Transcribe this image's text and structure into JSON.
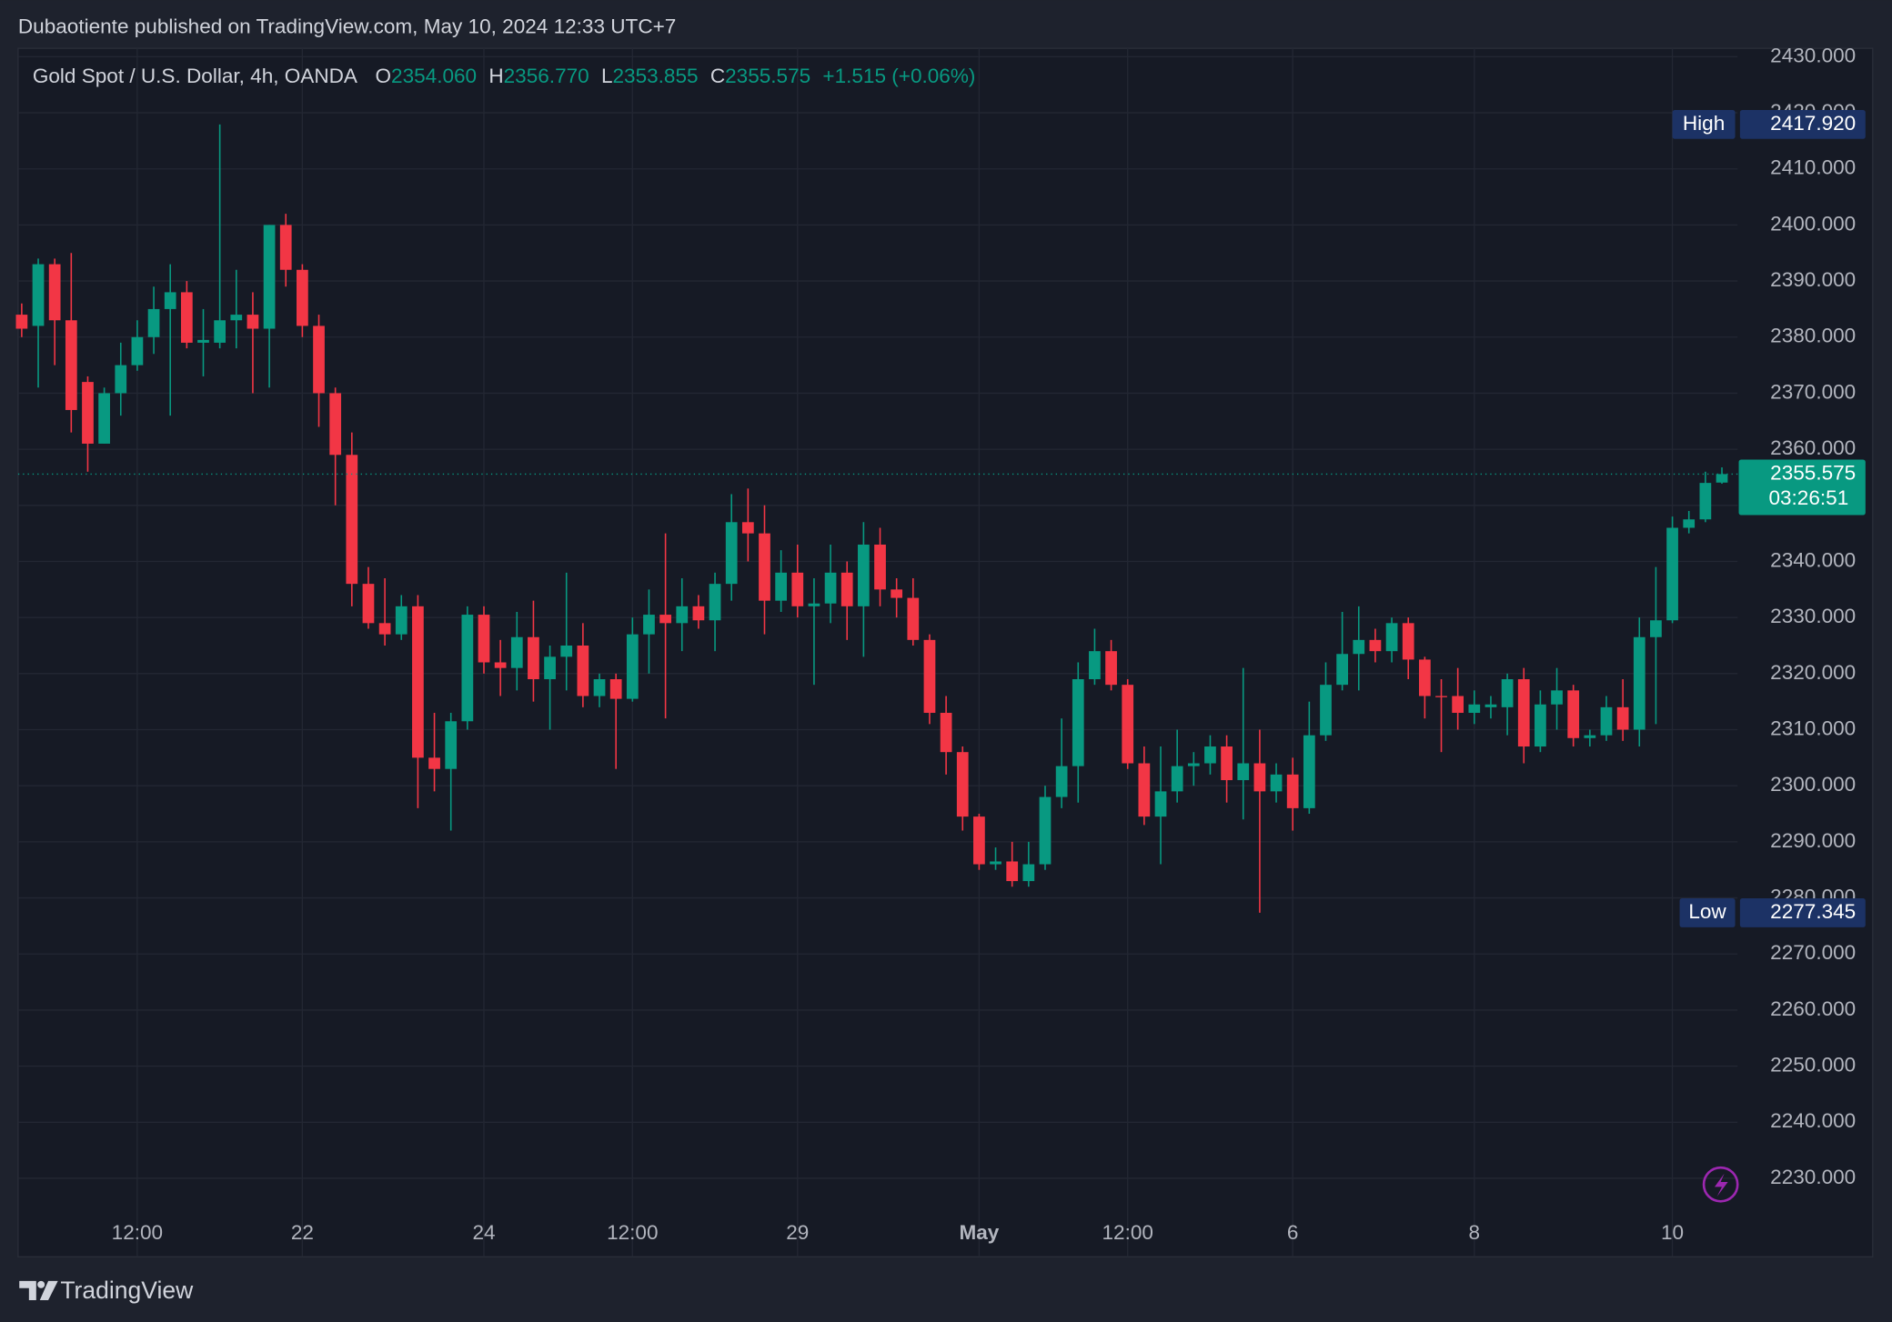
{
  "header": "Dubaotiente published on TradingView.com, May 10, 2024 12:33 UTC+7",
  "footer": "TradingView",
  "chart_data": {
    "type": "candlestick",
    "legend": {
      "symbol": "Gold Spot / U.S. Dollar, 4h, OANDA",
      "items": [
        {
          "key": "O",
          "label": "2354.060"
        },
        {
          "key": "H",
          "label": "2356.770"
        },
        {
          "key": "L",
          "label": "2353.855"
        },
        {
          "key": "C",
          "label": "2355.575"
        }
      ],
      "change": "+1.515 (+0.06%)"
    },
    "up_color": "#089981",
    "down_color": "#f23645",
    "categories": [
      null,
      null,
      null,
      null,
      null,
      null,
      null,
      "12:00",
      null,
      null,
      null,
      null,
      null,
      null,
      null,
      null,
      null,
      "22",
      null,
      null,
      null,
      null,
      null,
      null,
      null,
      null,
      null,
      null,
      "24",
      null,
      null,
      null,
      null,
      null,
      null,
      null,
      null,
      "12:00",
      null,
      null,
      null,
      null,
      null,
      null,
      null,
      null,
      null,
      "29",
      null,
      null,
      null,
      null,
      null,
      null,
      null,
      null,
      null,
      null,
      "May",
      null,
      null,
      null,
      null,
      null,
      null,
      null,
      null,
      "12:00",
      null,
      null,
      null,
      null,
      null,
      null,
      null,
      null,
      null,
      "6",
      null,
      null,
      null,
      null,
      null,
      null,
      null,
      null,
      null,
      null,
      "8",
      null,
      null,
      null,
      null,
      null,
      null,
      null,
      null,
      null,
      null,
      null,
      "10",
      null,
      null,
      null
    ],
    "open": [
      2384,
      2382,
      2393,
      2383,
      2372,
      2361,
      2370,
      2375,
      2380,
      2385,
      2388,
      2379,
      2379,
      2383,
      2384,
      2381.5,
      2400,
      2392,
      2382,
      2370,
      2359,
      2336,
      2329,
      2327,
      2332,
      2305,
      2303,
      2311.5,
      2330.5,
      2322,
      2321,
      2326.5,
      2319,
      2323,
      2325,
      2316,
      2319,
      2315.5,
      2327,
      2330.5,
      2329,
      2332,
      2329.5,
      2336,
      2347,
      2345,
      2333,
      2338,
      2332,
      2332.5,
      2338,
      2332,
      2343,
      2335,
      2333.5,
      2326,
      2313,
      2306,
      2294.5,
      2286,
      2286.5,
      2283,
      2286,
      2298,
      2303.5,
      2319,
      2324,
      2318,
      2304,
      2294.5,
      2299,
      2303.5,
      2304,
      2307,
      2301,
      2304,
      2299,
      2302,
      2296,
      2309,
      2318,
      2323.5,
      2326,
      2324,
      2329,
      2322.5,
      2316,
      2316,
      2313,
      2314,
      2314,
      2319,
      2307,
      2314.5,
      2317,
      2308.5,
      2309,
      2314,
      2310,
      2326.5,
      2329.5,
      2346,
      2347.5,
      2354.06
    ],
    "high": [
      2386,
      2394,
      2394,
      2395,
      2373,
      2371,
      2379,
      2383,
      2389,
      2393,
      2390,
      2385,
      2417.92,
      2392,
      2388,
      2400,
      2402,
      2393,
      2384,
      2371,
      2363,
      2339,
      2337,
      2334,
      2334,
      2313,
      2313,
      2332,
      2332,
      2326,
      2331,
      2333,
      2325,
      2338,
      2329,
      2320,
      2320,
      2330,
      2335,
      2345,
      2337,
      2334,
      2338,
      2352,
      2353,
      2350,
      2342,
      2343,
      2337,
      2343,
      2340,
      2347,
      2346,
      2337,
      2337,
      2327,
      2316,
      2307,
      2295,
      2289,
      2290,
      2290,
      2300,
      2312,
      2322,
      2328,
      2326,
      2319,
      2307,
      2307,
      2310,
      2306,
      2309,
      2309,
      2321,
      2310,
      2304,
      2305,
      2315,
      2322,
      2331,
      2332,
      2328,
      2330,
      2330,
      2323,
      2319,
      2321,
      2317,
      2316,
      2320,
      2321,
      2317,
      2321,
      2318,
      2310,
      2316,
      2319,
      2330,
      2339,
      2348,
      2349,
      2356,
      2356.77
    ],
    "low": [
      2380,
      2371,
      2375,
      2363,
      2356,
      2361,
      2366,
      2374,
      2377,
      2366,
      2378,
      2373,
      2378,
      2378,
      2370,
      2371,
      2389,
      2380,
      2364,
      2350,
      2332,
      2328,
      2325,
      2326,
      2296,
      2299,
      2292,
      2310,
      2320,
      2316,
      2317,
      2315,
      2310,
      2317,
      2314,
      2314,
      2303,
      2315,
      2320,
      2312,
      2324,
      2328,
      2324,
      2333,
      2340,
      2327,
      2331,
      2330,
      2318,
      2329,
      2326,
      2323,
      2332,
      2330,
      2325,
      2311,
      2302,
      2292,
      2285,
      2285,
      2282,
      2282,
      2285,
      2296,
      2297,
      2318,
      2317,
      2303,
      2293,
      2286,
      2297,
      2300,
      2302,
      2297,
      2294,
      2277.345,
      2297,
      2292,
      2295,
      2308,
      2317,
      2317,
      2322,
      2322,
      2319,
      2312,
      2306,
      2310,
      2311,
      2312,
      2309,
      2304,
      2306,
      2310,
      2307,
      2307,
      2308,
      2308,
      2307,
      2311,
      2329,
      2345,
      2347,
      2353.855
    ],
    "close": [
      2381.5,
      2393,
      2383,
      2367,
      2361,
      2370,
      2375,
      2380,
      2385,
      2388,
      2379,
      2379.5,
      2383,
      2384,
      2381.5,
      2400,
      2392,
      2382,
      2370,
      2359,
      2336,
      2329,
      2327,
      2332,
      2305,
      2303,
      2311.5,
      2330.5,
      2322,
      2321,
      2326.5,
      2319,
      2323,
      2325,
      2316,
      2319,
      2315.5,
      2327,
      2330.5,
      2329,
      2332,
      2329.5,
      2336,
      2347,
      2345,
      2333,
      2338,
      2332,
      2332.5,
      2338,
      2332,
      2343,
      2335,
      2333.5,
      2326,
      2313,
      2306,
      2294.5,
      2286,
      2286.5,
      2283,
      2286,
      2298,
      2303.5,
      2319,
      2324,
      2318,
      2304,
      2294.5,
      2299,
      2303.5,
      2304,
      2307,
      2301,
      2304,
      2299,
      2302,
      2296,
      2309,
      2318,
      2323.5,
      2326,
      2324,
      2329,
      2322.5,
      2316,
      2315.8,
      2313,
      2314.5,
      2314.5,
      2319,
      2307,
      2314.5,
      2317,
      2308.5,
      2309,
      2314,
      2310,
      2326.5,
      2329.5,
      2346,
      2347.5,
      2354,
      2355.575
    ],
    "ylim": [
      2216,
      2431.5
    ],
    "yticks": [
      {
        "value": 2230,
        "label": "2230.000"
      },
      {
        "value": 2240,
        "label": "2240.000"
      },
      {
        "value": 2250,
        "label": "2250.000"
      },
      {
        "value": 2260,
        "label": "2260.000"
      },
      {
        "value": 2270,
        "label": "2270.000"
      },
      {
        "value": 2280,
        "label": "2280.000"
      },
      {
        "value": 2290,
        "label": "2290.000"
      },
      {
        "value": 2300,
        "label": "2300.000"
      },
      {
        "value": 2310,
        "label": "2310.000"
      },
      {
        "value": 2320,
        "label": "2320.000"
      },
      {
        "value": 2330,
        "label": "2330.000"
      },
      {
        "value": 2340,
        "label": "2340.000"
      },
      {
        "value": 2350,
        "label": "2350.000"
      },
      {
        "value": 2360,
        "label": "2360.000"
      },
      {
        "value": 2370,
        "label": "2370.000"
      },
      {
        "value": 2380,
        "label": "2380.000"
      },
      {
        "value": 2390,
        "label": "2390.000"
      },
      {
        "value": 2400,
        "label": "2400.000"
      },
      {
        "value": 2410,
        "label": "2410.000"
      },
      {
        "value": 2420,
        "label": "2420.000"
      },
      {
        "value": 2430,
        "label": "2430.000"
      }
    ],
    "grid": true,
    "high_marker": {
      "label": "High",
      "value": 2417.92,
      "value_label": "2417.920"
    },
    "low_marker": {
      "label": "Low",
      "value": 2277.345,
      "value_label": "2277.345"
    },
    "last_price": {
      "value": 2355.575,
      "label": "2355.575",
      "countdown": "03:26:51"
    }
  }
}
